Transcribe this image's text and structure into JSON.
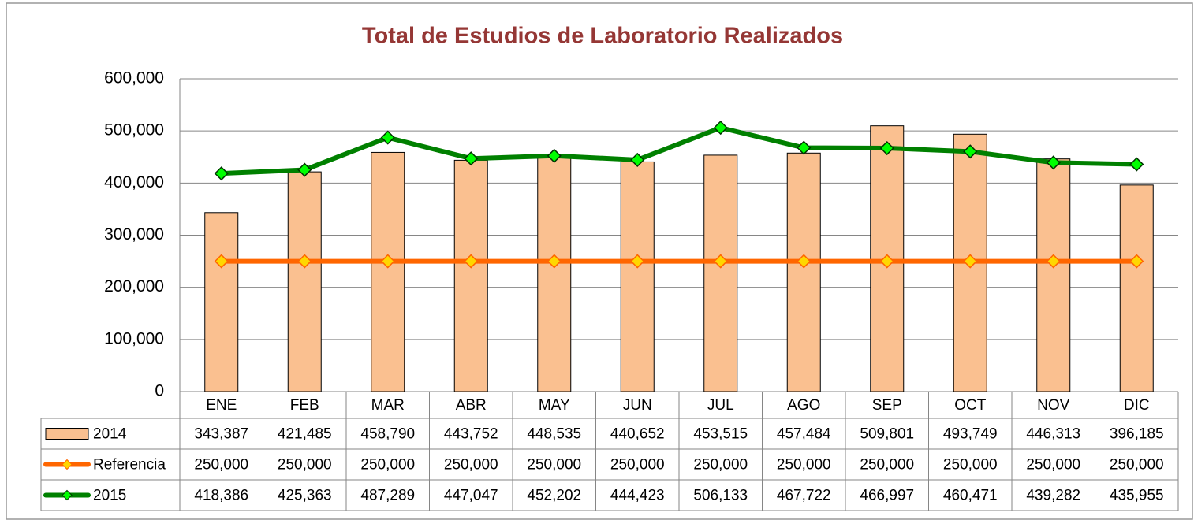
{
  "chart_data": {
    "type": "bar-line-table",
    "title": "Total de Estudios de Laboratorio Realizados",
    "categories": [
      "ENE",
      "FEB",
      "MAR",
      "ABR",
      "MAY",
      "JUN",
      "JUL",
      "AGO",
      "SEP",
      "OCT",
      "NOV",
      "DIC"
    ],
    "ylim": [
      0,
      600000
    ],
    "yticks": [
      0,
      {
        "value": 100000,
        "label": "100,000"
      },
      {
        "value": 200000,
        "label": "200,000"
      },
      {
        "value": 300000,
        "label": "300,000"
      },
      {
        "value": 400000,
        "label": "400,000"
      },
      {
        "value": 500000,
        "label": "500,000"
      },
      {
        "value": 600000,
        "label": "600,000"
      }
    ],
    "grid": true,
    "series": [
      {
        "name": "2014",
        "type": "bar",
        "color": "#FAC090",
        "values": [
          343387,
          421485,
          458790,
          443752,
          448535,
          440652,
          453515,
          457484,
          509801,
          493749,
          446313,
          396185
        ],
        "value_labels": [
          "343,387",
          "421,485",
          "458,790",
          "443,752",
          "448,535",
          "440,652",
          "453,515",
          "457,484",
          "509,801",
          "493,749",
          "446,313",
          "396,185"
        ]
      },
      {
        "name": "Referencia",
        "type": "line",
        "color": "#FF6600",
        "marker_color": "#FFD700",
        "values": [
          250000,
          250000,
          250000,
          250000,
          250000,
          250000,
          250000,
          250000,
          250000,
          250000,
          250000,
          250000
        ],
        "value_labels": [
          "250,000",
          "250,000",
          "250,000",
          "250,000",
          "250,000",
          "250,000",
          "250,000",
          "250,000",
          "250,000",
          "250,000",
          "250,000",
          "250,000"
        ]
      },
      {
        "name": "2015",
        "type": "line",
        "color": "#008000",
        "marker_color": "#00FF00",
        "values": [
          418386,
          425363,
          487289,
          447047,
          452202,
          444423,
          506133,
          467722,
          466997,
          460471,
          439282,
          435955
        ],
        "value_labels": [
          "418,386",
          "425,363",
          "487,289",
          "447,047",
          "452,202",
          "444,423",
          "506,133",
          "467,722",
          "466,997",
          "460,471",
          "439,282",
          "435,955"
        ]
      }
    ]
  }
}
